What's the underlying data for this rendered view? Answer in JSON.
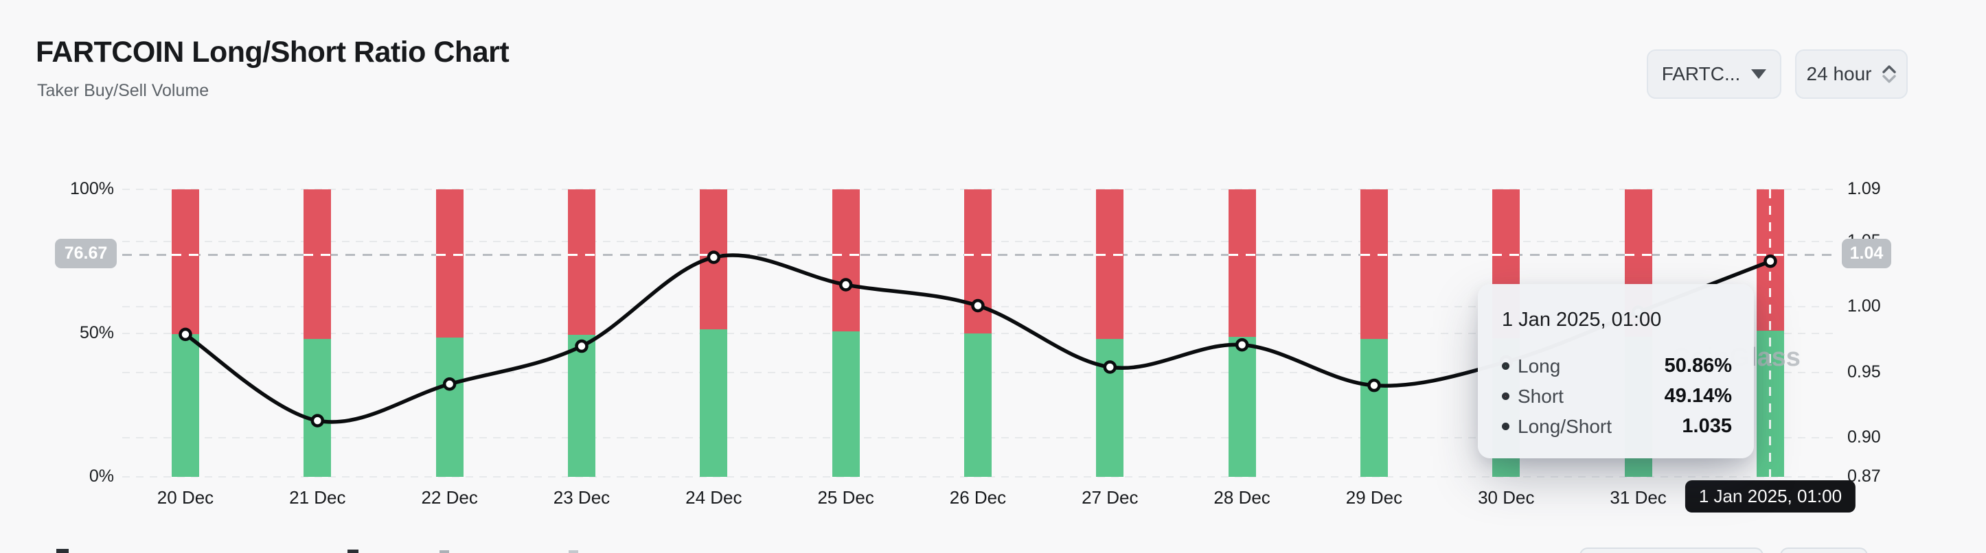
{
  "header": {
    "title": "FARTCOIN Long/Short Ratio Chart",
    "subtitle": "Taker Buy/Sell Volume",
    "symbol_select": {
      "value": "FARTC..."
    },
    "interval_select": {
      "value": "24 hour"
    }
  },
  "chart_data": {
    "type": "bar",
    "subtype": "stacked-bars-with-line",
    "title": "FARTCOIN Long/Short Ratio Chart",
    "categories": [
      "20 Dec",
      "21 Dec",
      "22 Dec",
      "23 Dec",
      "24 Dec",
      "25 Dec",
      "26 Dec",
      "27 Dec",
      "28 Dec",
      "29 Dec",
      "30 Dec",
      "31 Dec",
      "1 Jan 2025, 01:00"
    ],
    "series": [
      {
        "name": "Long",
        "unit": "%",
        "color": "#5bc78c",
        "axis": "left",
        "values": [
          49.6,
          48.0,
          48.5,
          49.3,
          51.2,
          50.7,
          49.9,
          48.0,
          48.8,
          48.0,
          48.3,
          48.6,
          50.86
        ]
      },
      {
        "name": "Short",
        "unit": "%",
        "color": "#e1545f",
        "axis": "left",
        "values": [
          50.4,
          52.0,
          51.5,
          50.7,
          48.8,
          49.3,
          50.1,
          52.0,
          51.2,
          52.0,
          51.7,
          51.4,
          49.14
        ]
      },
      {
        "name": "Long/Short",
        "type": "line",
        "color": "#0a0c0e",
        "axis": "right",
        "values": [
          0.979,
          0.913,
          0.941,
          0.97,
          1.038,
          1.017,
          1.001,
          0.954,
          0.971,
          0.94,
          0.958,
          0.996,
          1.035
        ]
      }
    ],
    "left_axis": {
      "ticks": [
        "100%",
        "50%",
        "0%"
      ],
      "tick_values": [
        100,
        50,
        0
      ],
      "min": 0,
      "max": 100
    },
    "right_axis": {
      "ticks": [
        "1.09",
        "1.05",
        "1.00",
        "0.95",
        "0.90",
        "0.87"
      ],
      "tick_values": [
        1.09,
        1.05,
        1.0,
        0.95,
        0.9,
        0.87
      ],
      "min": 0.87,
      "max": 1.09
    },
    "grid": "dashed-horizontal",
    "legend": "none",
    "crosshair": {
      "left_badge": "76.67",
      "right_badge": "1.04",
      "right_value": 1.04,
      "x_index": 12
    }
  },
  "tooltip": {
    "title": "1 Jan 2025, 01:00",
    "rows": [
      {
        "label": "Long",
        "value": "50.86%",
        "color": "#5bc78c"
      },
      {
        "label": "Short",
        "value": "49.14%",
        "color": "#e1545f"
      },
      {
        "label": "Long/Short",
        "value": "1.035",
        "color": "#17191c"
      }
    ]
  },
  "x_axis_badge": "1 Jan 2025, 01:00",
  "watermark": "CoinGlass"
}
